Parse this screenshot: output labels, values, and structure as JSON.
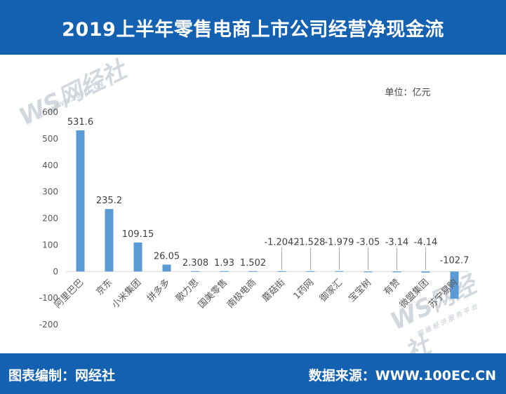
{
  "header": {
    "title": "2019上半年零售电商上市公司经营净现金流"
  },
  "footer": {
    "left_text": "图表编制：网经社",
    "right_text": "数据来源：WWW.100EC.CN"
  },
  "watermark": {
    "brand": "WS网经社",
    "url": "WWW.100EC.CN",
    "tagline": "网 络 经 济 服 务 平 台"
  },
  "colors": {
    "header_bg": "#1461b1",
    "bar": "#5b9bd5",
    "axis_text": "#595959"
  },
  "chart_data": {
    "type": "bar",
    "title": "2019上半年零售电商上市公司经营净现金流",
    "unit_label": "单位：亿元",
    "xlabel": "",
    "ylabel": "",
    "ylim": [
      -200,
      600
    ],
    "yticks": [
      600,
      500,
      400,
      300,
      200,
      100,
      0,
      -100,
      -200
    ],
    "grid": false,
    "categories": [
      "阿里巴巴",
      "京东",
      "小米集团",
      "拼多多",
      "歌力思",
      "国美零售",
      "南极电商",
      "蘑菇街",
      "1药网",
      "御家汇",
      "宝宝树",
      "有赞",
      "微盟集团",
      "苏宁易购"
    ],
    "values": [
      531.6,
      235.2,
      109.15,
      26.05,
      2.308,
      1.93,
      1.502,
      -1.2042,
      -1.528,
      -1.979,
      -3.05,
      -3.14,
      -4.14,
      -102.7
    ],
    "value_labels": [
      "531.6",
      "235.2",
      "109.15",
      "26.05",
      "2.308",
      "1.93",
      "1.502",
      "-1.2042",
      "-1.528",
      "-1.979",
      "-3.05",
      "-3.14",
      "-4.14",
      "-102.7"
    ]
  }
}
